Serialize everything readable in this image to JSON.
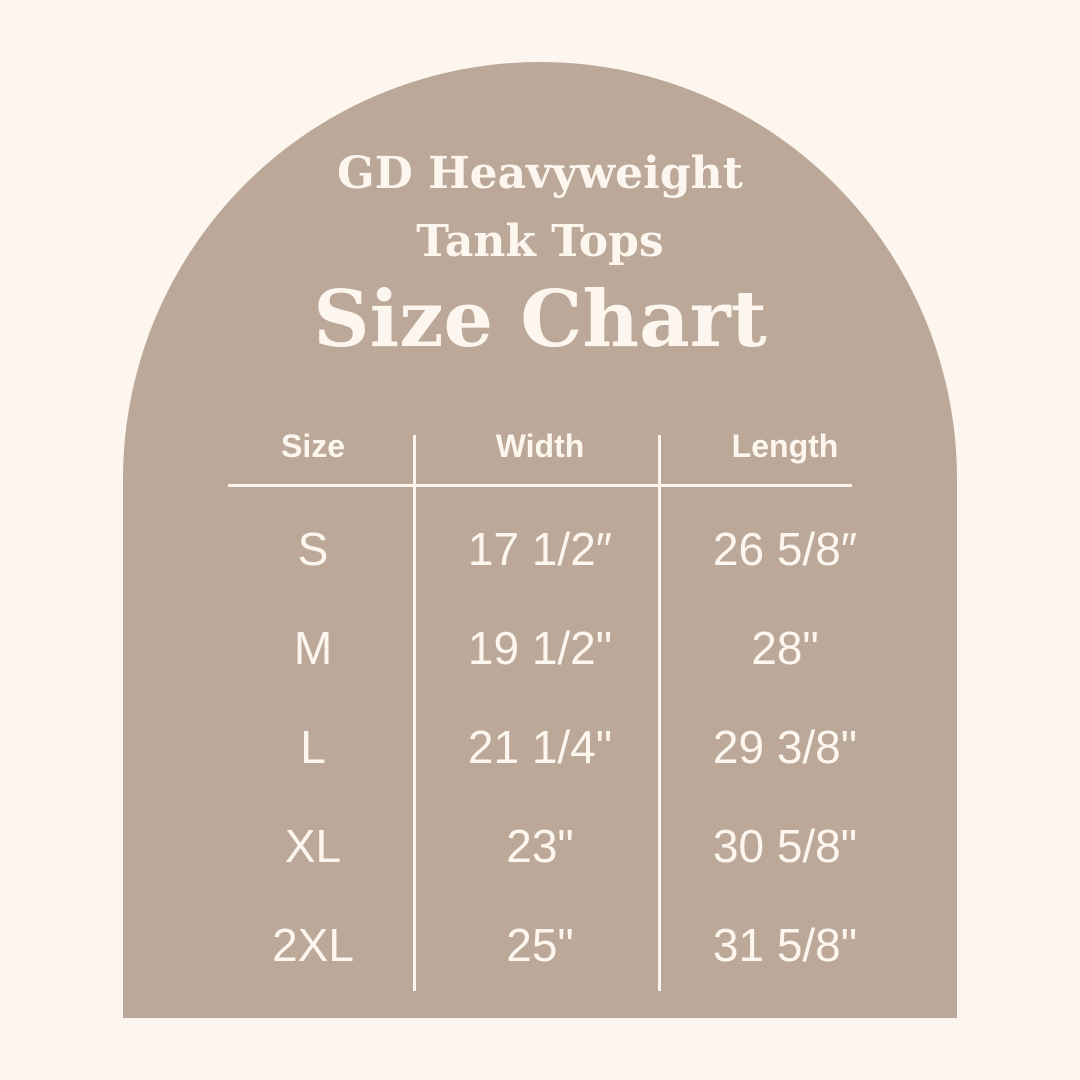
{
  "colors": {
    "background": "#fdf6ef",
    "arch": "#bba898",
    "text": "#fdf6ef"
  },
  "title": {
    "line1": "GD Heavyweight",
    "line2": "Tank Tops",
    "line3": "Size Chart"
  },
  "table": {
    "headers": [
      "Size",
      "Width",
      "Length"
    ],
    "rows": [
      [
        "S",
        "17 1/2″",
        "26 5/8″"
      ],
      [
        "M",
        "19 1/2\"",
        "28\""
      ],
      [
        "L",
        "21 1/4\"",
        "29 3/8\""
      ],
      [
        "XL",
        "23\"",
        "30 5/8\""
      ],
      [
        "2XL",
        "25\"",
        "31 5/8\""
      ]
    ]
  }
}
